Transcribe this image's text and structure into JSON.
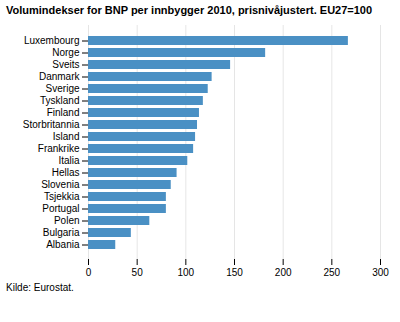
{
  "chart_data": {
    "type": "bar",
    "orientation": "horizontal",
    "title": "Volumindekser for BNP per innbygger 2010, prisnivåjustert. EU27=100",
    "source": "Kilde: Eurostat.",
    "categories": [
      "Albania",
      "Bulgaria",
      "Polen",
      "Portugal",
      "Tsjekkia",
      "Slovenia",
      "Hellas",
      "Italia",
      "Frankrike",
      "Island",
      "Storbritannia",
      "Finland",
      "Tyskland",
      "Sverige",
      "Danmark",
      "Sveits",
      "Norge",
      "Luxembourg"
    ],
    "values": [
      28,
      44,
      63,
      80,
      80,
      85,
      91,
      102,
      108,
      110,
      112,
      114,
      118,
      123,
      127,
      146,
      182,
      267
    ],
    "color": "#4a90c4",
    "xlim": [
      0,
      300
    ],
    "xticks": [
      0,
      50,
      100,
      150,
      200,
      250,
      300
    ],
    "grid": true
  }
}
